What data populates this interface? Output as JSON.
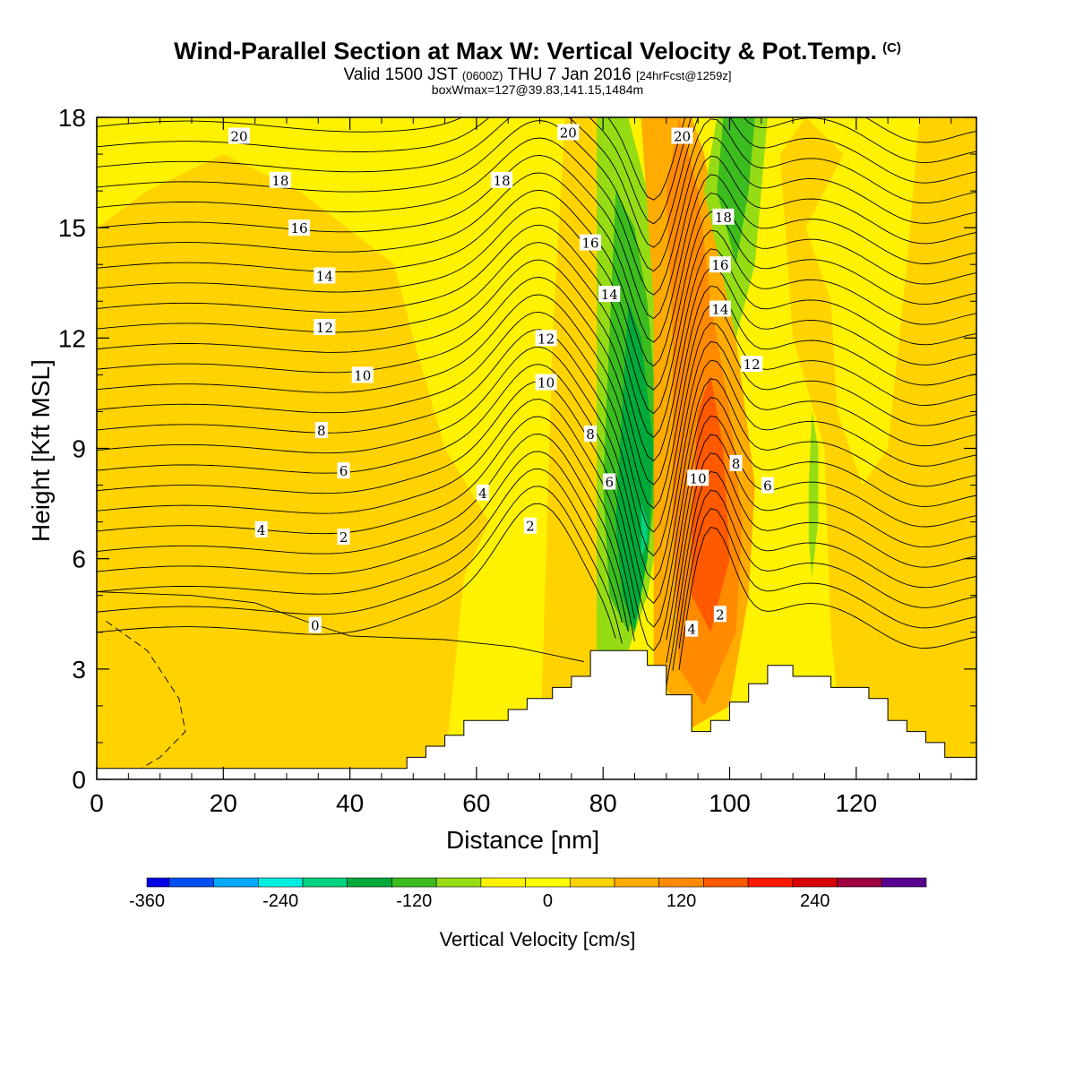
{
  "title": {
    "main": "Wind-Parallel Section at Max W: Vertical Velocity & Pot.Temp.",
    "copyright": "(C)",
    "valid_prefix": "Valid 1500 JST",
    "valid_utc": "(0600Z)",
    "valid_date": "THU 7 Jan 2016",
    "forecast": "[24hrFcst@1259z]",
    "boxinfo": "boxWmax=127@39.83,141.15,1484m"
  },
  "colors": {
    "background_fill": "#fff200",
    "plot_frame": "#000000",
    "contour_line": "#000000",
    "terrain": "#ffffff"
  },
  "chart_data": {
    "type": "heatmap",
    "xlabel": "Distance [nm]",
    "ylabel": "Height [Kft MSL]",
    "xlim": [
      0,
      139
    ],
    "ylim": [
      0,
      18
    ],
    "x_ticks": [
      0,
      20,
      40,
      60,
      80,
      100,
      120
    ],
    "y_ticks": [
      0,
      3,
      6,
      9,
      12,
      15,
      18
    ],
    "colorbar": {
      "label": "Vertical Velocity [cm/s]",
      "tick_labels": [
        "-360",
        "-240",
        "-120",
        "0",
        "120",
        "240"
      ],
      "bins": [
        {
          "from": -360,
          "to": -340,
          "color": "#0000e8"
        },
        {
          "from": -340,
          "to": -300,
          "color": "#0050f5"
        },
        {
          "from": -300,
          "to": -260,
          "color": "#00a8ff"
        },
        {
          "from": -260,
          "to": -220,
          "color": "#00eee0"
        },
        {
          "from": -220,
          "to": -180,
          "color": "#00d27d"
        },
        {
          "from": -180,
          "to": -140,
          "color": "#00aa3a"
        },
        {
          "from": -140,
          "to": -100,
          "color": "#3cbc1e"
        },
        {
          "from": -100,
          "to": -60,
          "color": "#96dc14"
        },
        {
          "from": -60,
          "to": -20,
          "color": "#fff200"
        },
        {
          "from": -20,
          "to": 20,
          "color": "#ffff00"
        },
        {
          "from": 20,
          "to": 60,
          "color": "#ffd200"
        },
        {
          "from": 60,
          "to": 100,
          "color": "#ffab00"
        },
        {
          "from": 100,
          "to": 140,
          "color": "#ff8a00"
        },
        {
          "from": 140,
          "to": 180,
          "color": "#ff5a00"
        },
        {
          "from": 180,
          "to": 220,
          "color": "#ff1a00"
        },
        {
          "from": 220,
          "to": 260,
          "color": "#d80000"
        },
        {
          "from": 260,
          "to": 300,
          "color": "#9e0040"
        },
        {
          "from": 300,
          "to": 340,
          "color": "#5a0090"
        }
      ]
    },
    "velocity_regions": [
      {
        "color": "#ffd200",
        "points": [
          [
            0,
            0.3
          ],
          [
            55,
            0.3
          ],
          [
            58,
            5.5
          ],
          [
            62,
            7
          ],
          [
            55,
            9
          ],
          [
            50,
            12
          ],
          [
            47,
            14
          ],
          [
            32,
            16
          ],
          [
            20,
            17
          ],
          [
            8,
            16
          ],
          [
            0,
            15
          ]
        ]
      },
      {
        "color": "#ffd200",
        "points": [
          [
            118,
            0.5
          ],
          [
            139,
            0.5
          ],
          [
            139,
            18
          ],
          [
            130,
            18
          ],
          [
            128,
            14
          ],
          [
            125,
            9
          ],
          [
            121,
            8
          ],
          [
            117,
            10
          ],
          [
            116,
            13
          ],
          [
            112,
            15
          ],
          [
            118,
            17
          ],
          [
            112,
            18
          ],
          [
            108,
            17
          ],
          [
            110,
            12
          ],
          [
            115,
            9
          ],
          [
            116,
            4
          ]
        ]
      },
      {
        "color": "#ffd200",
        "points": [
          [
            70,
            0.5
          ],
          [
            79,
            3
          ],
          [
            84,
            8
          ],
          [
            86,
            12
          ],
          [
            84,
            16
          ],
          [
            81,
            18
          ],
          [
            74,
            18
          ],
          [
            72,
            12
          ],
          [
            71,
            6
          ]
        ]
      },
      {
        "color": "#96dc14",
        "points": [
          [
            79,
            3.5
          ],
          [
            83,
            3
          ],
          [
            87,
            5
          ],
          [
            90,
            8
          ],
          [
            89,
            13
          ],
          [
            87,
            16
          ],
          [
            84,
            18
          ],
          [
            79,
            18
          ],
          [
            79,
            13
          ],
          [
            79,
            7
          ]
        ]
      },
      {
        "color": "#3cbc1e",
        "points": [
          [
            81,
            5
          ],
          [
            84,
            4
          ],
          [
            87,
            6
          ],
          [
            89,
            9
          ],
          [
            87,
            13
          ],
          [
            85,
            15
          ],
          [
            82,
            16
          ],
          [
            81,
            12
          ],
          [
            80,
            8
          ]
        ]
      },
      {
        "color": "#00aa3a",
        "points": [
          [
            83,
            5
          ],
          [
            85,
            4
          ],
          [
            87,
            6
          ],
          [
            88,
            9
          ],
          [
            86,
            12
          ],
          [
            84,
            13
          ],
          [
            83,
            10
          ],
          [
            82,
            7
          ]
        ]
      },
      {
        "color": "#00d27d",
        "points": [
          [
            86,
            6
          ],
          [
            87,
            6.5
          ],
          [
            87,
            7
          ],
          [
            86,
            7.5
          ]
        ]
      },
      {
        "color": "#ffab00",
        "points": [
          [
            88,
            3
          ],
          [
            94,
            1.4
          ],
          [
            100,
            2
          ],
          [
            103,
            5
          ],
          [
            104,
            8
          ],
          [
            101,
            12
          ],
          [
            98,
            15
          ],
          [
            96,
            17
          ],
          [
            94,
            18
          ],
          [
            86,
            18
          ],
          [
            88,
            13
          ],
          [
            88,
            8
          ]
        ]
      },
      {
        "color": "#ff8a00",
        "points": [
          [
            92,
            3
          ],
          [
            96,
            2
          ],
          [
            101,
            4
          ],
          [
            102,
            7
          ],
          [
            100,
            10
          ],
          [
            97,
            13
          ],
          [
            95,
            16
          ],
          [
            92,
            18
          ],
          [
            90,
            16
          ],
          [
            91,
            12
          ],
          [
            91,
            7
          ]
        ]
      },
      {
        "color": "#ff5a00",
        "points": [
          [
            94,
            5
          ],
          [
            97,
            4
          ],
          [
            100,
            6
          ],
          [
            99,
            9
          ],
          [
            97,
            11
          ],
          [
            95,
            10
          ],
          [
            94,
            7
          ]
        ]
      },
      {
        "color": "#96dc14",
        "points": [
          [
            96,
            16
          ],
          [
            101,
            12
          ],
          [
            104,
            14
          ],
          [
            106,
            18
          ],
          [
            98,
            18
          ]
        ]
      },
      {
        "color": "#3cbc1e",
        "points": [
          [
            98,
            16
          ],
          [
            101,
            14
          ],
          [
            103,
            16
          ],
          [
            104,
            18
          ],
          [
            99,
            18
          ]
        ]
      },
      {
        "color": "#96dc14",
        "points": [
          [
            113,
            5.5
          ],
          [
            114,
            7
          ],
          [
            114,
            9
          ],
          [
            113,
            10
          ],
          [
            112.5,
            8
          ],
          [
            112.5,
            6.5
          ]
        ]
      }
    ],
    "terrain_profile": {
      "x": [
        0,
        49,
        49,
        52,
        52,
        55,
        55,
        58,
        58,
        65,
        65,
        68,
        68,
        72,
        72,
        75,
        75,
        78,
        78,
        87,
        87,
        90,
        90,
        94,
        94,
        97,
        97,
        100,
        100,
        103,
        103,
        106,
        106,
        110,
        110,
        116,
        116,
        122,
        122,
        125,
        125,
        128,
        128,
        131,
        131,
        134,
        134,
        139
      ],
      "y": [
        0.3,
        0.3,
        0.6,
        0.6,
        0.9,
        0.9,
        1.2,
        1.2,
        1.6,
        1.6,
        1.9,
        1.9,
        2.2,
        2.2,
        2.5,
        2.5,
        2.8,
        2.8,
        3.5,
        3.5,
        3.1,
        3.1,
        2.3,
        2.3,
        1.3,
        1.3,
        1.6,
        1.6,
        2.1,
        2.1,
        2.6,
        2.6,
        3.1,
        3.1,
        2.8,
        2.8,
        2.5,
        2.5,
        2.2,
        2.2,
        1.6,
        1.6,
        1.3,
        1.3,
        1.0,
        1.0,
        0.6,
        0.6
      ]
    },
    "theta_contours": [
      {
        "label": "0",
        "level": 0,
        "label_at": [
          34.5,
          4.2
        ],
        "base": 4.0
      },
      {
        "label": "2",
        "level": 2,
        "label_at": [
          39,
          6.6
        ],
        "base": 6.0
      },
      {
        "label": "4",
        "level": 4,
        "label_at": [
          26,
          6.8
        ],
        "base": 6.3
      },
      {
        "label": "6",
        "level": 6,
        "label_at": [
          39,
          8.4
        ],
        "base": 7.5
      },
      {
        "label": "8",
        "level": 8,
        "label_at": [
          35.5,
          9.5
        ],
        "base": 8.6
      },
      {
        "label": "10",
        "level": 10,
        "label_at": [
          42,
          11.0
        ],
        "base": 10.0
      },
      {
        "label": "12",
        "level": 12,
        "label_at": [
          36,
          12.3
        ],
        "base": 11.3
      },
      {
        "label": "14",
        "level": 14,
        "label_at": [
          36,
          13.7
        ],
        "base": 12.9
      },
      {
        "label": "16",
        "level": 16,
        "label_at": [
          32,
          15.0
        ],
        "base": 14.6
      },
      {
        "label": "18",
        "level": 18,
        "label_at": [
          29,
          16.3
        ],
        "base": 16.0
      },
      {
        "label": "20",
        "level": 20,
        "label_at": [
          22.5,
          17.5
        ],
        "base": 17.3
      }
    ],
    "contour_labels_extra": [
      {
        "label": "2",
        "x": 68.5,
        "y": 6.9
      },
      {
        "label": "4",
        "x": 61,
        "y": 7.8
      },
      {
        "label": "6",
        "x": 81,
        "y": 8.1
      },
      {
        "label": "8",
        "x": 78,
        "y": 9.4
      },
      {
        "label": "10",
        "x": 71,
        "y": 10.8
      },
      {
        "label": "12",
        "x": 71,
        "y": 12.0
      },
      {
        "label": "14",
        "x": 81,
        "y": 13.2
      },
      {
        "label": "16",
        "x": 78,
        "y": 14.6
      },
      {
        "label": "18",
        "x": 64,
        "y": 16.3
      },
      {
        "label": "20",
        "x": 74.5,
        "y": 17.6
      },
      {
        "label": "20",
        "x": 92.5,
        "y": 17.5
      },
      {
        "label": "18",
        "x": 99,
        "y": 15.3
      },
      {
        "label": "16",
        "x": 98.5,
        "y": 14.0
      },
      {
        "label": "14",
        "x": 98.5,
        "y": 12.8
      },
      {
        "label": "12",
        "x": 103.5,
        "y": 11.3
      },
      {
        "label": "10",
        "x": 95,
        "y": 8.2
      },
      {
        "label": "8",
        "x": 101,
        "y": 8.6
      },
      {
        "label": "6",
        "x": 106,
        "y": 8.0
      },
      {
        "label": "4",
        "x": 94,
        "y": 4.1
      },
      {
        "label": "2",
        "x": 98.5,
        "y": 4.5
      }
    ]
  }
}
